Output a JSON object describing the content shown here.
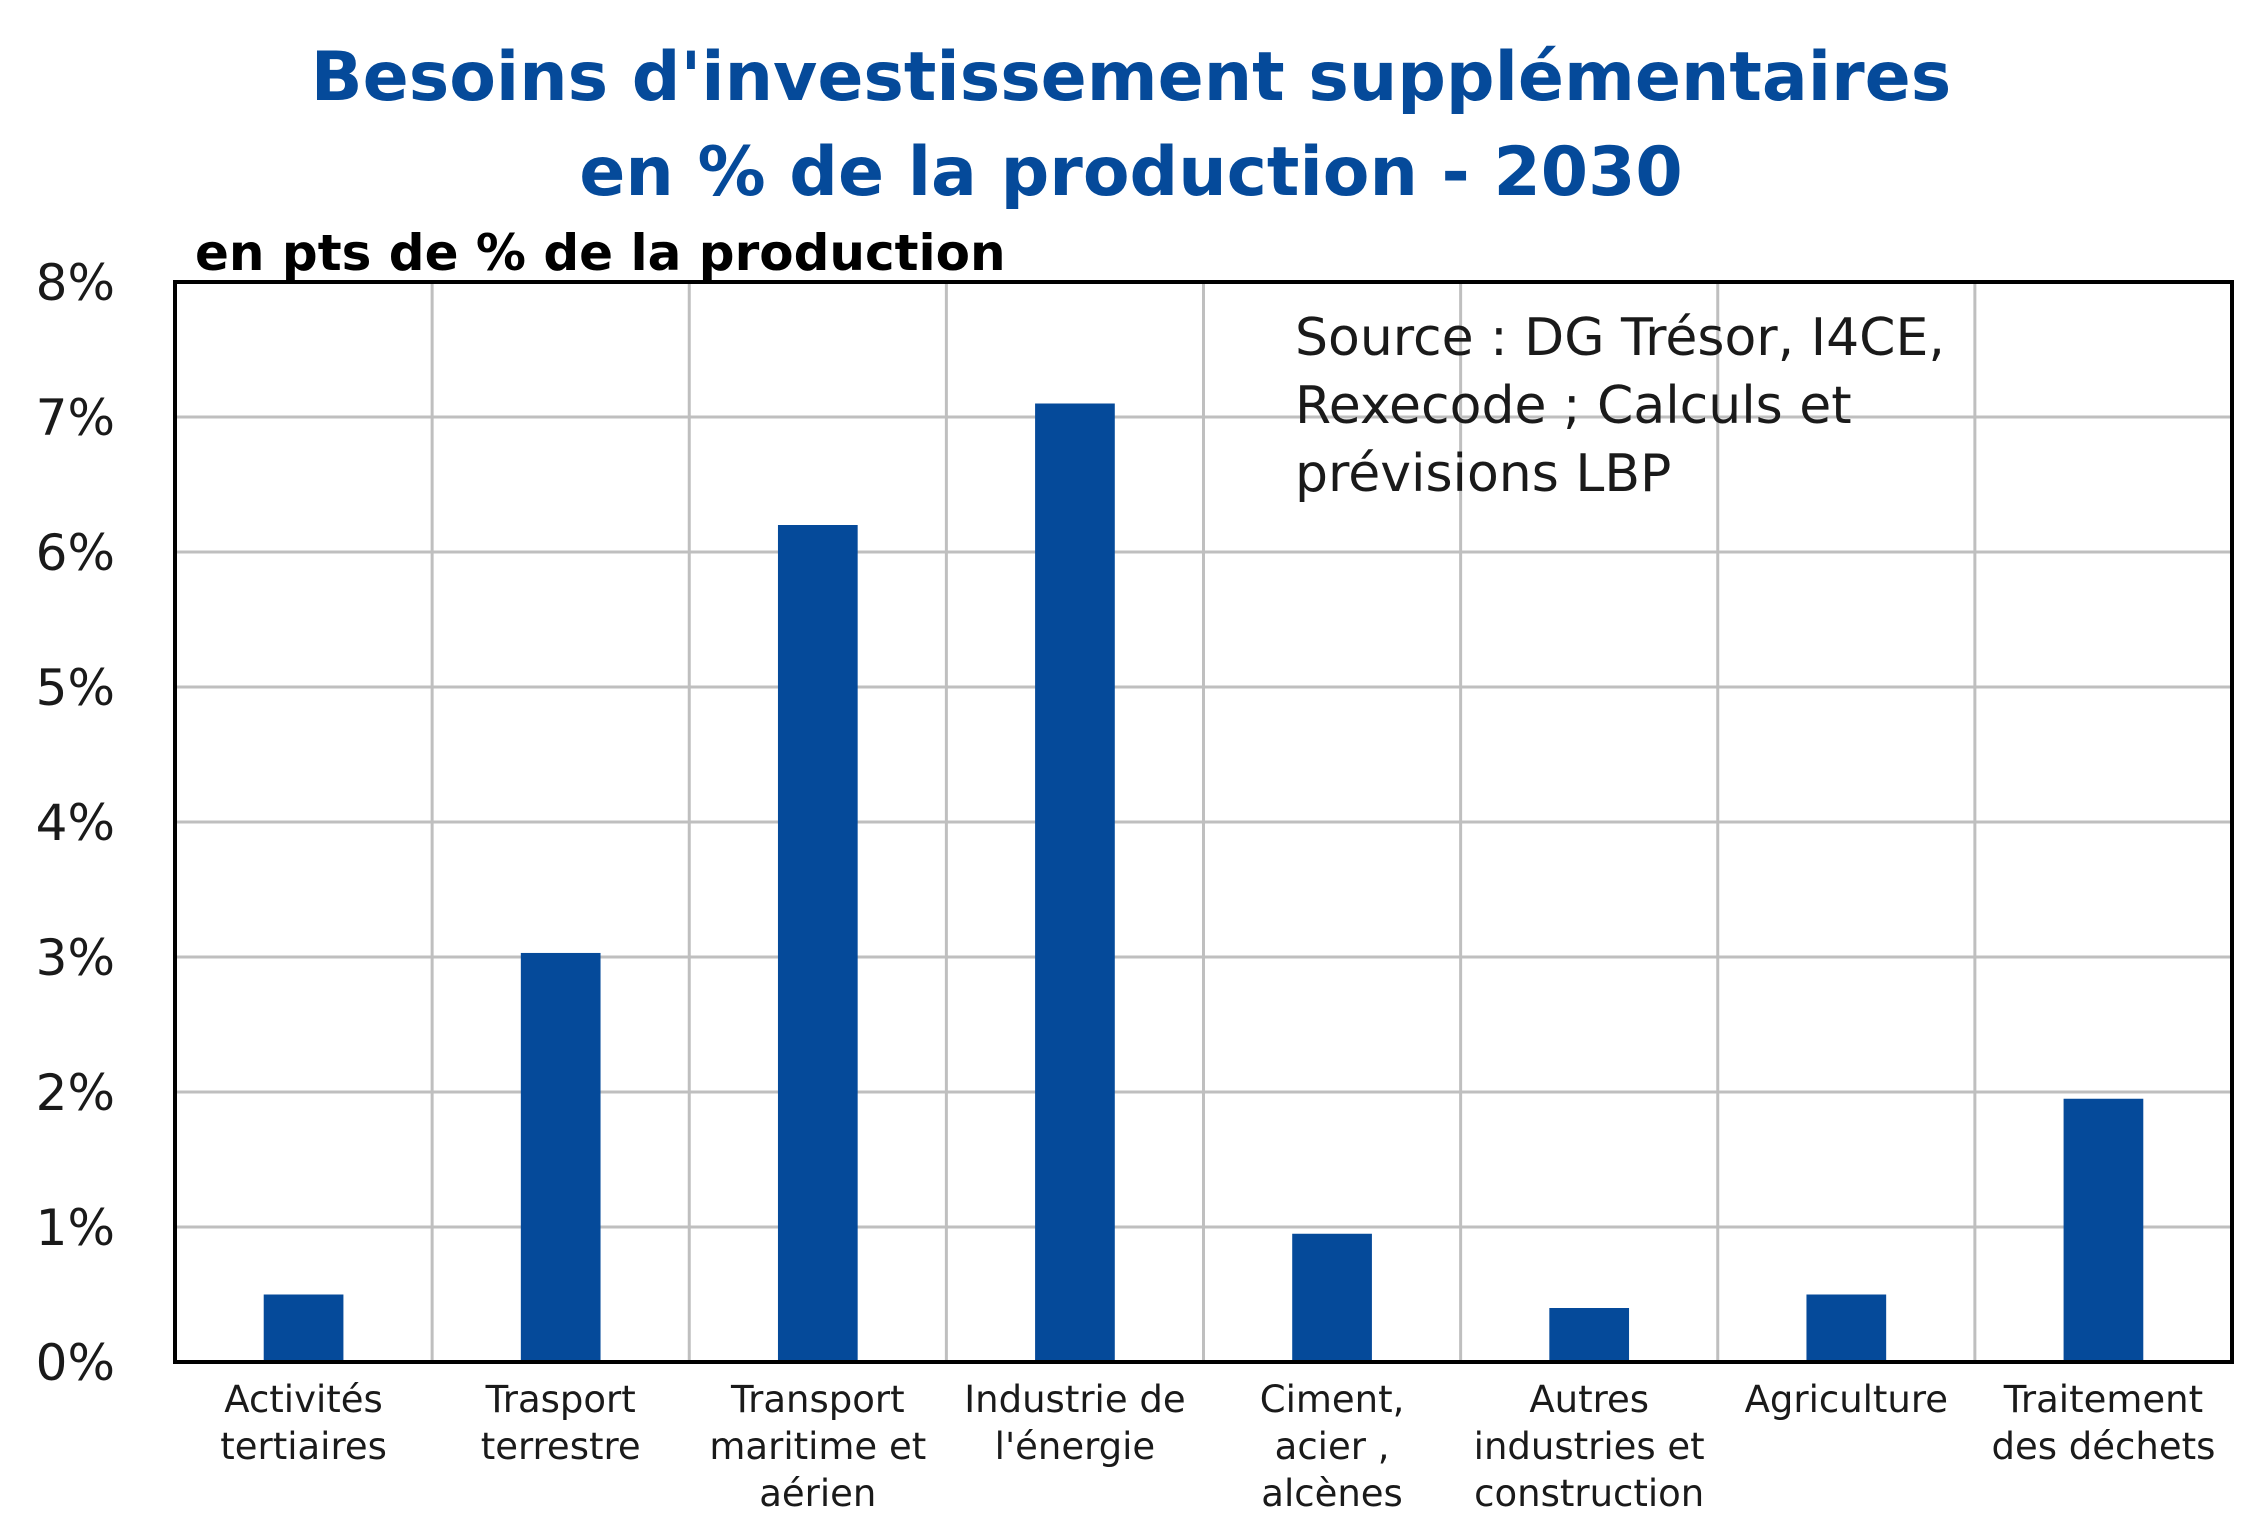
{
  "chart_data": {
    "type": "bar",
    "title": [
      "Besoins d'investissement supplémentaires",
      "en % de la production - 2030"
    ],
    "subtitle": "en pts de % de la production",
    "source": [
      "Source : DG Trésor, I4CE,",
      "Rexecode ; Calculs et",
      "prévisions LBP"
    ],
    "categories": [
      [
        "Activités",
        "tertiaires"
      ],
      [
        "Trasport",
        "terrestre"
      ],
      [
        "Transport",
        "maritime et",
        "aérien"
      ],
      [
        "Industrie de",
        "l'énergie"
      ],
      [
        "Ciment,",
        "acier ,",
        "alcènes"
      ],
      [
        "Autres",
        "industries et",
        "construction"
      ],
      [
        "Agriculture"
      ],
      [
        "Traitement",
        "des déchets"
      ]
    ],
    "values": [
      0.5,
      3.03,
      6.2,
      7.1,
      0.95,
      0.4,
      0.5,
      1.95
    ],
    "ylim": [
      0,
      8
    ],
    "yticks": [
      "0%",
      "1%",
      "2%",
      "3%",
      "4%",
      "5%",
      "6%",
      "7%",
      "8%"
    ],
    "grid": true,
    "legend": "none",
    "bar_color": "#054a9a"
  }
}
